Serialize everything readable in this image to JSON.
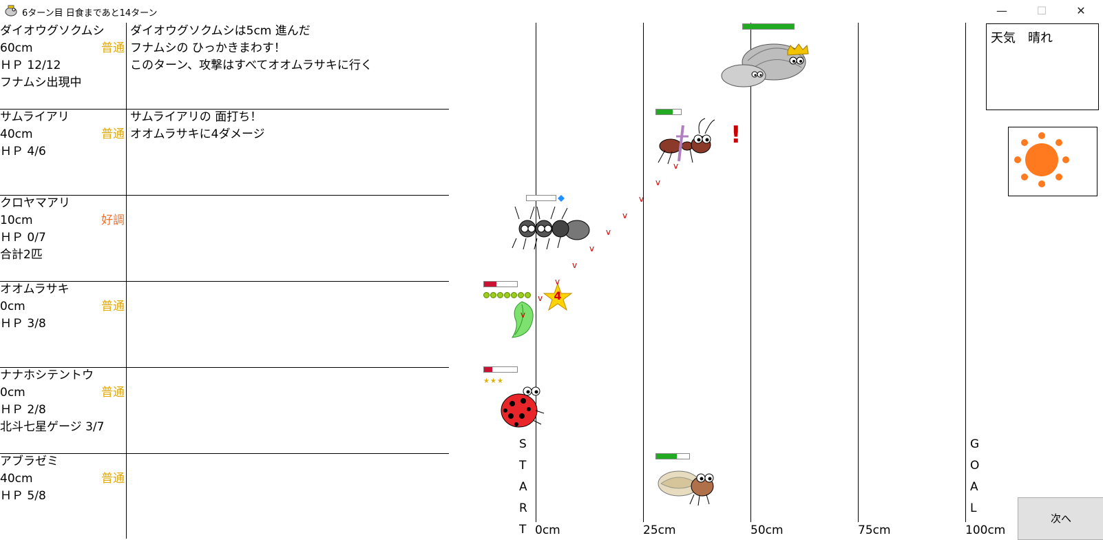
{
  "window": {
    "title": "6ターン目 日食まであと14ターン",
    "minimize_glyph": "—",
    "maximize_glyph": "☐",
    "close_glyph": "✕"
  },
  "colors": {
    "condition_normal": "#e0a800",
    "condition_good": "#f07028",
    "hp_green": "#22aa22",
    "hp_red": "#cc1133",
    "mark_red": "#cc0000"
  },
  "characters": [
    {
      "name": "ダイオウグソクムシ",
      "distance": "60cm",
      "condition": "普通",
      "hp": "ＨＰ 12/12",
      "extra": "フナムシ出現中",
      "log": [
        "ダイオウグソクムシは5cm 進んだ",
        "フナムシの ひっかきまわす！",
        "このターン、攻撃はすべてオオムラサキに行く"
      ]
    },
    {
      "name": "サムライアリ",
      "distance": "40cm",
      "condition": "普通",
      "hp": "ＨＰ 4/6",
      "extra": "",
      "log": [
        "サムライアリの 面打ち！",
        "オオムラサキに4ダメージ",
        ""
      ]
    },
    {
      "name": "クロヤマアリ",
      "distance": "10cm",
      "condition": "好調",
      "hp": "ＨＰ 0/7",
      "extra": "合計2匹",
      "log": [
        "",
        "",
        ""
      ]
    },
    {
      "name": "オオムラサキ",
      "distance": "0cm",
      "condition": "普通",
      "hp": "ＨＰ 3/8",
      "extra": "",
      "log": [
        "",
        "",
        ""
      ]
    },
    {
      "name": "ナナホシテントウ",
      "distance": "0cm",
      "condition": "普通",
      "hp": "ＨＰ 2/8",
      "extra": "北斗七星ゲージ 3/7",
      "log": [
        "",
        "",
        ""
      ]
    },
    {
      "name": "アブラゼミ",
      "distance": "40cm",
      "condition": "普通",
      "hp": "ＨＰ 5/8",
      "extra": "",
      "log": [
        "",
        "",
        ""
      ]
    }
  ],
  "field": {
    "ticks": [
      "0cm",
      "25cm",
      "50cm",
      "75cm",
      "100cm"
    ],
    "start_letters": [
      "S",
      "T",
      "A",
      "R",
      "T"
    ],
    "goal_letters": [
      "G",
      "O",
      "A",
      "L"
    ],
    "exclaim": "!",
    "damage_number": "4",
    "attack_mark": "v",
    "hp_fractions": {
      "daiou": 1.0,
      "samurai": 0.667,
      "kuroyama": 0.0,
      "oomurasaki": 0.375,
      "nanahoshi": 0.25,
      "aburazemi": 0.625
    },
    "oomurasaki_pips": 7,
    "nanahoshi_stars": 3
  },
  "weather": {
    "label": "天気　晴れ",
    "icon": "sun-icon"
  },
  "next_button": "次へ"
}
